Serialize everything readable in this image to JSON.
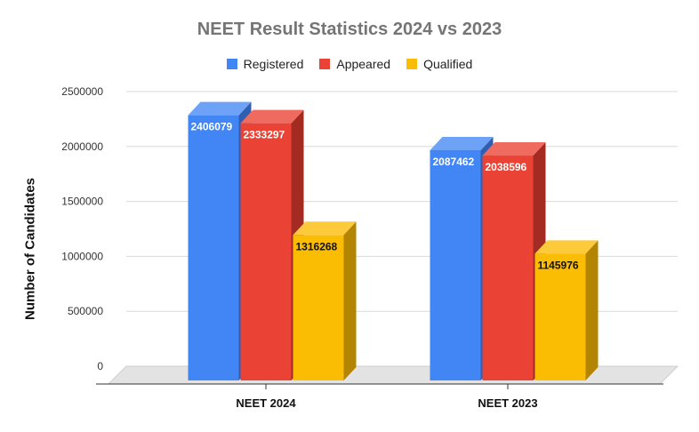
{
  "chart_data": {
    "type": "bar",
    "title": "NEET Result Statistics 2024 vs 2023",
    "ylabel": "Number of Candidates",
    "xlabel": "",
    "categories": [
      "NEET 2024",
      "NEET 2023"
    ],
    "series": [
      {
        "name": "Registered",
        "values": [
          2406079,
          2087462
        ],
        "color": "#4285F4",
        "side_color": "#2f5fb3",
        "top_color": "#6ea2f7"
      },
      {
        "name": "Appeared",
        "values": [
          2333297,
          2038596
        ],
        "color": "#EA4335",
        "side_color": "#a32b22",
        "top_color": "#ef6b60"
      },
      {
        "name": "Qualified",
        "values": [
          1316268,
          1145976
        ],
        "color": "#FBBC04",
        "side_color": "#b38503",
        "top_color": "#fcca3a"
      }
    ],
    "ylim": [
      0,
      2500000
    ],
    "yticks": [
      "0",
      "500000",
      "1000000",
      "1500000",
      "2000000",
      "2500000"
    ],
    "grid": true,
    "legend_position": "top",
    "style": "3d"
  }
}
